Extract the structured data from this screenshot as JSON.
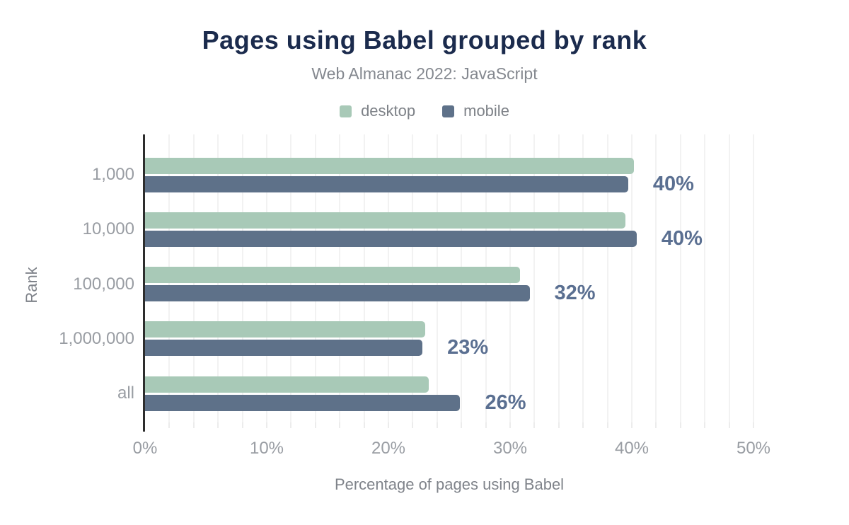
{
  "chart": {
    "title": "Pages using Babel grouped by rank",
    "subtitle": "Web Almanac 2022: JavaScript"
  },
  "legend": {
    "items": [
      {
        "label": "desktop",
        "color": "#a8c9b7"
      },
      {
        "label": "mobile",
        "color": "#5e7189"
      }
    ]
  },
  "chart_data": {
    "type": "bar",
    "orientation": "horizontal",
    "title": "Pages using Babel grouped by rank",
    "subtitle": "Web Almanac 2022: JavaScript",
    "categories": [
      "1,000",
      "10,000",
      "100,000",
      "1,000,000",
      "all"
    ],
    "series": [
      {
        "name": "desktop",
        "color": "#a8c9b7",
        "values": [
          40.2,
          39.5,
          30.8,
          23.0,
          23.3
        ]
      },
      {
        "name": "mobile",
        "color": "#5e7189",
        "values": [
          39.7,
          40.4,
          31.6,
          22.8,
          25.9
        ]
      }
    ],
    "data_labels": [
      "40%",
      "40%",
      "32%",
      "23%",
      "26%"
    ],
    "xlabel": "Percentage of pages using Babel",
    "ylabel": "Rank",
    "xlim": [
      0,
      50
    ],
    "x_ticks": [
      {
        "value": 0,
        "label": "0%"
      },
      {
        "value": 10,
        "label": "10%"
      },
      {
        "value": 20,
        "label": "20%"
      },
      {
        "value": 30,
        "label": "30%"
      },
      {
        "value": 40,
        "label": "40%"
      },
      {
        "value": 50,
        "label": "50%"
      }
    ],
    "grid": {
      "show": true,
      "interval_pct": 2,
      "color": "#f2f2f2"
    },
    "legend_position": "top"
  },
  "colors": {
    "background": "#ffffff",
    "title": "#1b2b4d",
    "subtitle": "#84888f",
    "legend_text": "#7d8187",
    "axis_line": "#2d2d2d",
    "tick_label": "#999da3",
    "axis_title": "#7f838a",
    "data_label": "#5a6f91",
    "gridline": "#f2f2f2"
  }
}
